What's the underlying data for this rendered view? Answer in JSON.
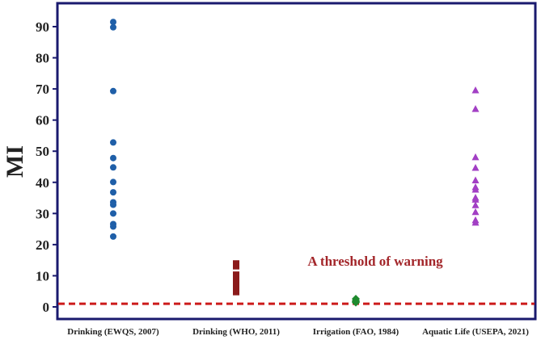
{
  "chart_data": {
    "type": "scatter",
    "ylabel": "MI",
    "ylim": [
      -3,
      96
    ],
    "yticks": [
      0,
      10,
      20,
      30,
      40,
      50,
      60,
      70,
      80,
      90
    ],
    "grid": false,
    "categories": [
      "Drinking (EWQS, 2007)",
      "Drinking (WHO, 2011)",
      "Irrigation (FAO, 1984)",
      "Aquatic Life (USEPA, 2021)"
    ],
    "series": [
      {
        "category_index": 0,
        "marker": "circle",
        "color": "#1f5fa8",
        "values": [
          91.5,
          89.8,
          69.3,
          52.8,
          47.8,
          44.8,
          40.1,
          36.8,
          33.6,
          32.8,
          30.0,
          26.6,
          25.8,
          22.6
        ]
      },
      {
        "category_index": 1,
        "marker": "square",
        "color": "#8b1a1a",
        "values": [
          14.2,
          12.8,
          10.6,
          9.8,
          8.9,
          8.0,
          7.3,
          6.5,
          5.8,
          5.1,
          4.5
        ]
      },
      {
        "category_index": 2,
        "marker": "diamond",
        "color": "#1e8a2e",
        "values": [
          2.6,
          2.0,
          1.7,
          1.4
        ]
      },
      {
        "category_index": 3,
        "marker": "triangle",
        "color": "#a23fc4",
        "values": [
          69.5,
          63.5,
          48.0,
          44.6,
          40.6,
          38.4,
          37.6,
          35.0,
          34.4,
          32.6,
          30.4,
          27.8,
          27.0
        ]
      }
    ],
    "threshold": {
      "value": 1,
      "label": "A threshold of warning",
      "color": "#cc1a1a"
    },
    "frame_color": "#1a1a6e"
  }
}
